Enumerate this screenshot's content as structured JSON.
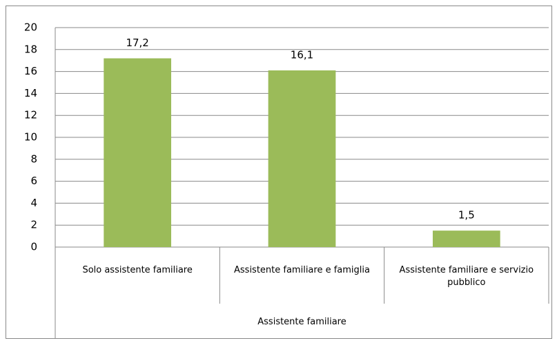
{
  "chart_data": {
    "type": "bar",
    "categories": [
      "Solo assistente familiare",
      "Assistente familiare e famiglia",
      "Assistente familiare e servizio pubblico"
    ],
    "values": [
      17.2,
      16.1,
      1.5
    ],
    "value_labels": [
      "17,2",
      "16,1",
      "1,5"
    ],
    "xlabel": "Assistente familiare",
    "color": "#9bbb59",
    "ylim": [
      0,
      20
    ],
    "yticks": [
      0,
      2,
      4,
      6,
      8,
      10,
      12,
      14,
      16,
      18,
      20
    ],
    "grid": true
  }
}
